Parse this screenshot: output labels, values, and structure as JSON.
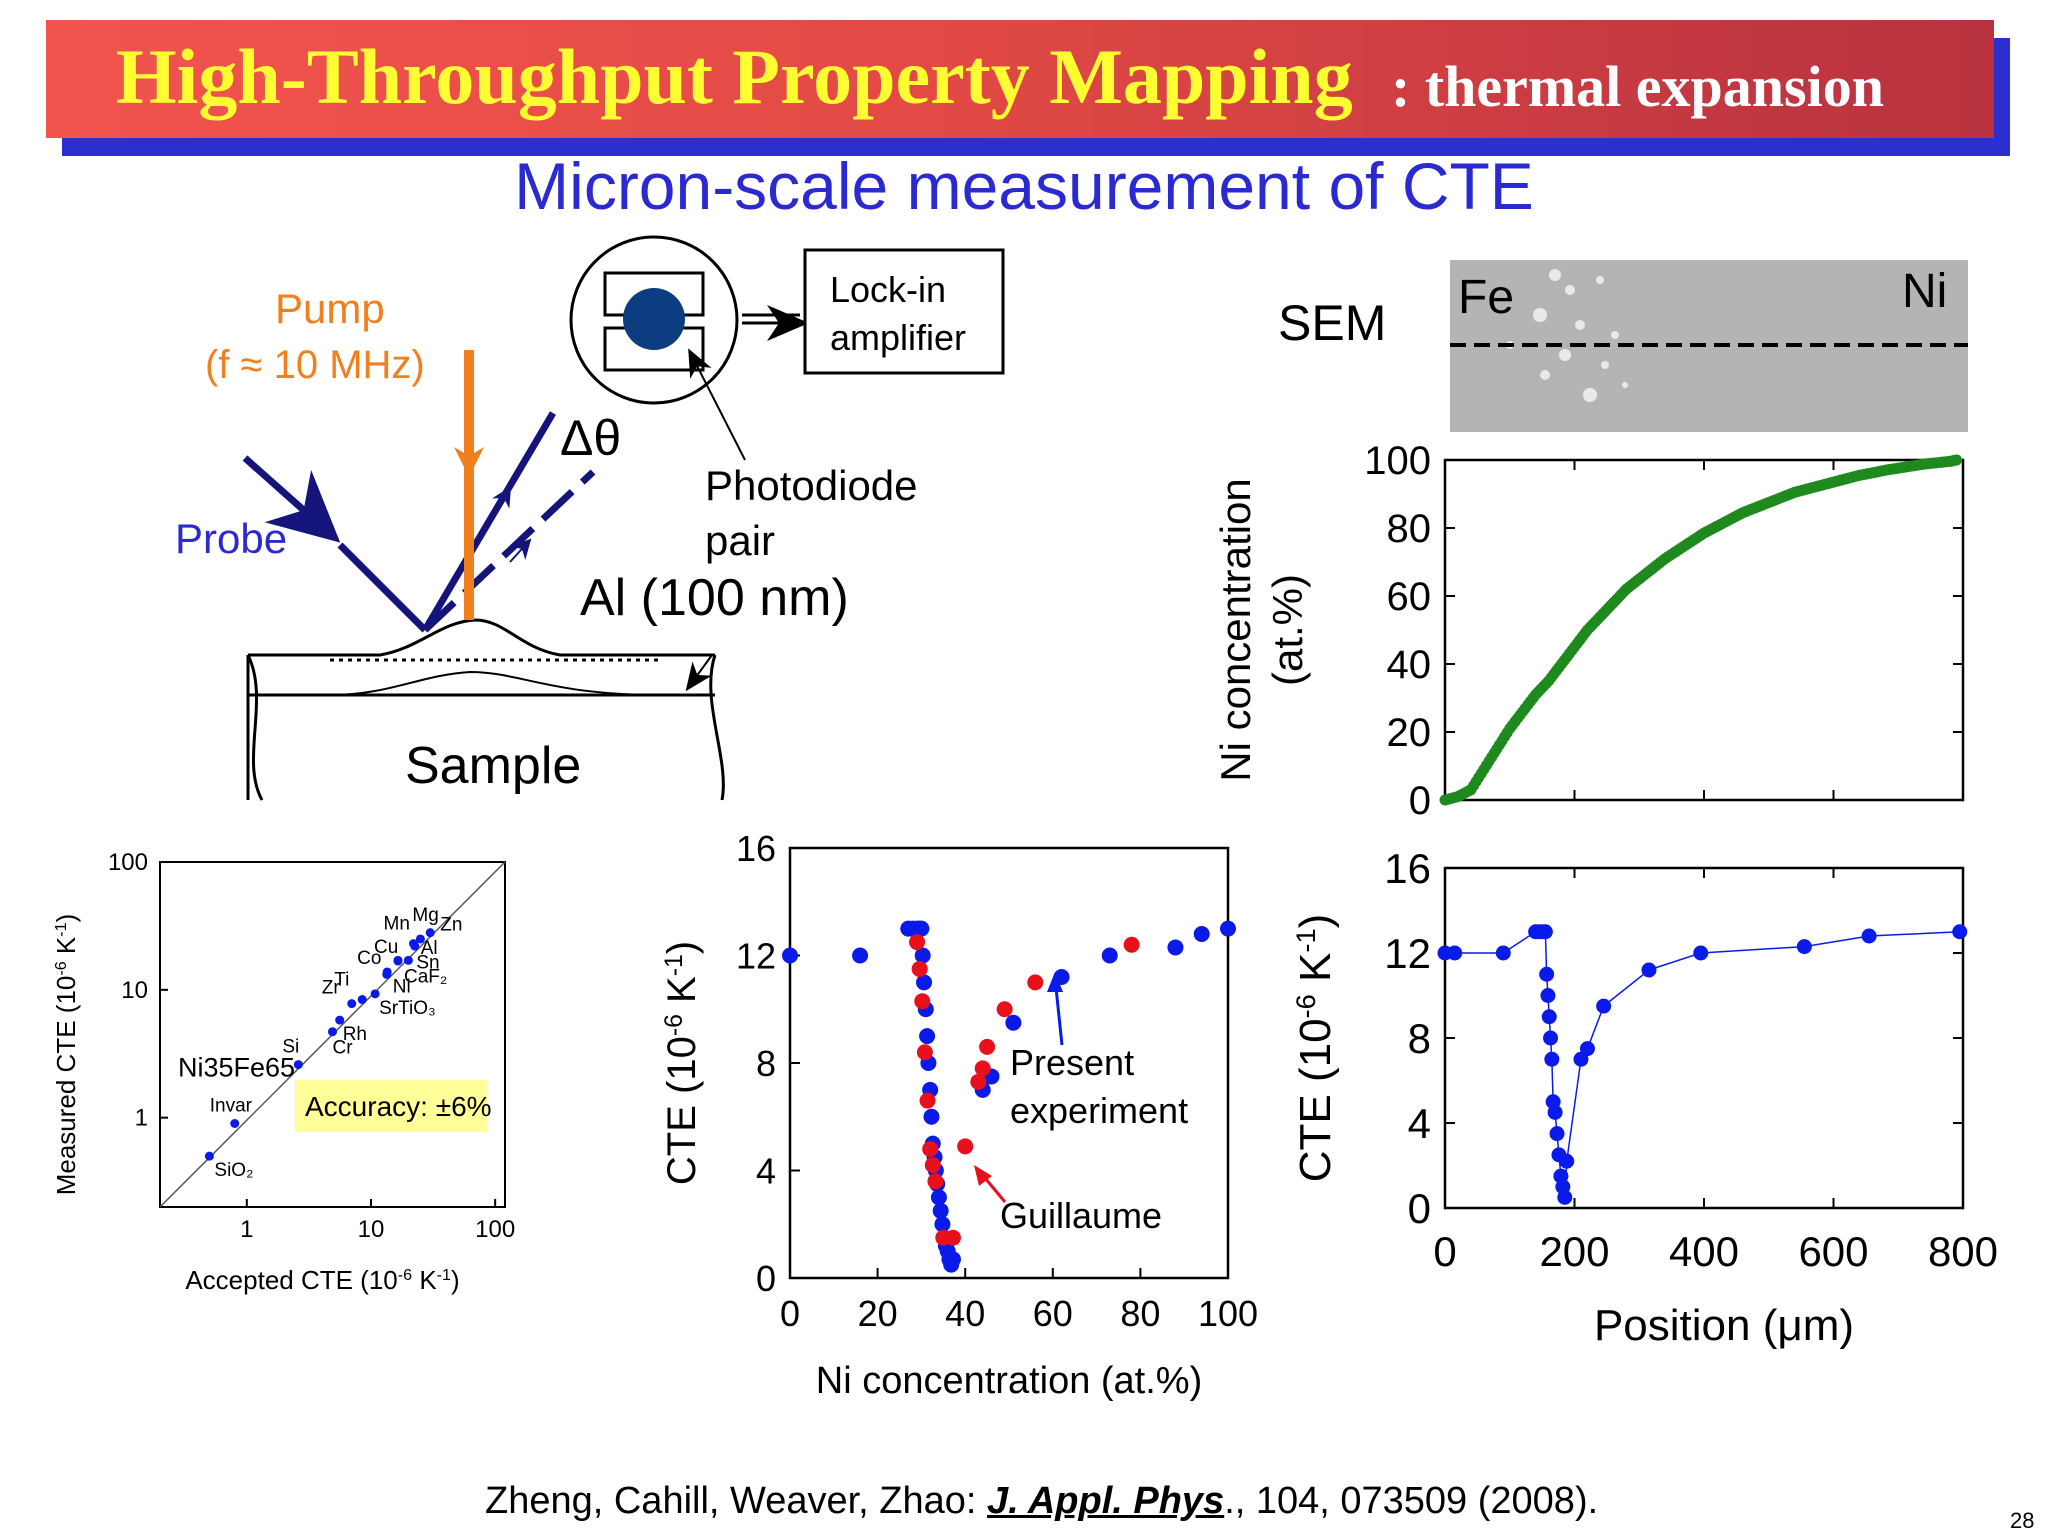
{
  "header": {
    "title": "High-Throughput Property Mapping",
    "title_suffix": ": thermal expansion",
    "subtitle": "Micron-scale measurement of CTE"
  },
  "diagram": {
    "pump_label": "Pump",
    "pump_freq": "(f ≈ 10 MHz)",
    "probe_label": "Probe",
    "delta_label": "Δθ",
    "lockin_line1": "Lock-in",
    "lockin_line2": "amplifier",
    "photodiode_line1": "Photodiode",
    "photodiode_line2": "pair",
    "al_label": "Al (100 nm)",
    "sample_label": "Sample"
  },
  "sem": {
    "label": "SEM",
    "fe_label": "Fe",
    "ni_label": "Ni"
  },
  "colors": {
    "banner_red": "#e24a45",
    "banner_title": "#ffff33",
    "subtitle_blue": "#2a2ad0",
    "pump_orange": "#f07f1e",
    "probe_navy": "#14147a",
    "blue_points": "#0a1ae8",
    "red_points": "#e8101a",
    "green_points": "#1e8a1e",
    "accuracy_bg": "#ffff99"
  },
  "chart_data": [
    {
      "type": "scatter",
      "scale": "log",
      "xlabel": "Accepted CTE (10",
      "xlabel_sup1": "-6",
      "xlabel_mid": " K",
      "xlabel_sup2": "-1",
      "xlabel_end": ")",
      "ylabel": "Measured CTE (10",
      "ylabel_sup1": "-6",
      "ylabel_mid": " K",
      "ylabel_sup2": "-1",
      "ylabel_end": ")",
      "xlim": [
        0.2,
        120
      ],
      "ylim": [
        0.2,
        100
      ],
      "x_ticks": [
        "1",
        "10",
        "100"
      ],
      "y_ticks": [
        "1",
        "10",
        "100"
      ],
      "annotation": "Accuracy: ±6%",
      "points": [
        {
          "label": "SiO₂",
          "x": 0.5,
          "y": 0.5
        },
        {
          "label": "Invar",
          "x": 0.8,
          "y": 0.9
        },
        {
          "label": "Si",
          "x": 2.6,
          "y": 2.6
        },
        {
          "label": "Cr",
          "x": 4.9,
          "y": 4.7
        },
        {
          "label": "Rh",
          "x": 5.6,
          "y": 5.8
        },
        {
          "label": "Zr",
          "x": 7.0,
          "y": 7.8
        },
        {
          "label": "Ti",
          "x": 8.5,
          "y": 8.4
        },
        {
          "label": "SrTiO₃",
          "x": 10.8,
          "y": 9.3
        },
        {
          "label": "Ni",
          "x": 13.4,
          "y": 13.2
        },
        {
          "label": "Co",
          "x": 13.5,
          "y": 13.8
        },
        {
          "label": "CaF₂",
          "x": 16.5,
          "y": 17.0
        },
        {
          "label": "Cu",
          "x": 16.5,
          "y": 16.8
        },
        {
          "label": "Sn",
          "x": 20.0,
          "y": 17.0
        },
        {
          "label": "Al",
          "x": 22.5,
          "y": 22.0
        },
        {
          "label": "Mn",
          "x": 22.0,
          "y": 23.0
        },
        {
          "label": "Mg",
          "x": 25.0,
          "y": 25.0
        },
        {
          "label": "Zn",
          "x": 30.0,
          "y": 28.0
        }
      ],
      "extra_label": "Ni35Fe65"
    },
    {
      "type": "scatter",
      "xlabel": "Ni concentration (at.%)",
      "ylabel": "CTE (10",
      "ylabel_sup": "-6",
      "ylabel_mid": " K",
      "ylabel_sup2": "-1",
      "ylabel_end": ")",
      "xlim": [
        0,
        100
      ],
      "ylim": [
        0,
        16
      ],
      "x_ticks": [
        "0",
        "20",
        "40",
        "60",
        "80",
        "100"
      ],
      "y_ticks": [
        "0",
        "4",
        "8",
        "12",
        "16"
      ],
      "legend_present": "Present",
      "legend_experiment": "experiment",
      "legend_guillaume": "Guillaume",
      "series": [
        {
          "name": "Present experiment",
          "color": "blue",
          "x": [
            0,
            16,
            27,
            28,
            29,
            29.5,
            30,
            30.3,
            30.6,
            31,
            31.3,
            31.6,
            32,
            32.3,
            32.6,
            33,
            33.3,
            33.6,
            34,
            34.4,
            34.8,
            35.2,
            35.6,
            36,
            36.4,
            36.8,
            37.2,
            44,
            45,
            46,
            51,
            62,
            73,
            88,
            94,
            100
          ],
          "y": [
            12,
            12,
            13,
            13,
            13,
            13,
            13,
            12,
            11,
            10,
            9,
            8,
            7,
            6,
            5,
            4.5,
            4,
            3.5,
            3,
            2.5,
            2,
            1.5,
            1.2,
            1,
            0.7,
            0.5,
            0.7,
            7,
            7.5,
            7.5,
            9.5,
            11.2,
            12,
            12.3,
            12.8,
            13
          ]
        },
        {
          "name": "Guillaume",
          "color": "red",
          "x": [
            29,
            29.6,
            30.2,
            30.8,
            31.4,
            32,
            32.6,
            33.2,
            35,
            37.2,
            40,
            43,
            44,
            45,
            49,
            56,
            78
          ],
          "y": [
            12.5,
            11.5,
            10.3,
            8.4,
            6.6,
            4.8,
            4.2,
            3.6,
            1.5,
            1.5,
            4.9,
            7.3,
            7.8,
            8.6,
            10,
            11,
            12.4
          ]
        }
      ]
    },
    {
      "type": "scatter",
      "xlabel": "",
      "ylabel": "Ni concentration",
      "ylabel_line2": "(at.%)",
      "xlim": [
        0,
        800
      ],
      "ylim": [
        0,
        100
      ],
      "y_ticks": [
        "0",
        "20",
        "40",
        "60",
        "80",
        "100"
      ],
      "series": [
        {
          "name": "",
          "color": "green",
          "x": [
            0,
            20,
            40,
            60,
            80,
            100,
            120,
            140,
            160,
            180,
            200,
            220,
            240,
            260,
            280,
            300,
            320,
            340,
            360,
            380,
            400,
            420,
            440,
            460,
            480,
            500,
            520,
            540,
            560,
            580,
            600,
            620,
            640,
            660,
            680,
            700,
            720,
            740,
            760,
            780,
            790
          ],
          "y": [
            0,
            1,
            3,
            9,
            15,
            21,
            26,
            31,
            35,
            40,
            45,
            50,
            54,
            58,
            62,
            65,
            68,
            71,
            73.5,
            76,
            78.5,
            80.5,
            82.5,
            84.5,
            86,
            87.5,
            89,
            90.5,
            91.5,
            92.5,
            93.5,
            94.5,
            95.5,
            96.2,
            97,
            97.6,
            98.2,
            98.8,
            99.2,
            99.6,
            100
          ]
        }
      ]
    },
    {
      "type": "line",
      "xlabel": "Position (μm)",
      "ylabel": "CTE (10",
      "ylabel_sup": "-6",
      "ylabel_mid": " K",
      "ylabel_sup2": "-1",
      "ylabel_end": ")",
      "xlim": [
        0,
        800
      ],
      "ylim": [
        0,
        16
      ],
      "x_ticks": [
        "0",
        "200",
        "400",
        "600",
        "800"
      ],
      "y_ticks": [
        "0",
        "4",
        "8",
        "12",
        "16"
      ],
      "series": [
        {
          "name": "",
          "color": "blue",
          "x": [
            0,
            15,
            90,
            140,
            145,
            150,
            155,
            157,
            159,
            161,
            163,
            165,
            167,
            170,
            173,
            176,
            179,
            182,
            185,
            188,
            210,
            220,
            245,
            315,
            395,
            555,
            655,
            795
          ],
          "y": [
            12,
            12,
            12,
            13,
            13,
            13,
            13,
            11,
            10,
            9,
            8,
            7,
            5,
            4.5,
            3.5,
            2.5,
            1.5,
            1,
            0.5,
            2.2,
            7,
            7.5,
            9.5,
            11.2,
            12,
            12.3,
            12.8,
            13
          ]
        }
      ]
    }
  ],
  "citation": {
    "authors": "Zheng, Cahill, Weaver, Zhao: ",
    "journal": "J. Appl. Phys",
    "rest": "., 104, 073509 (2008)."
  },
  "slide_number": "28"
}
